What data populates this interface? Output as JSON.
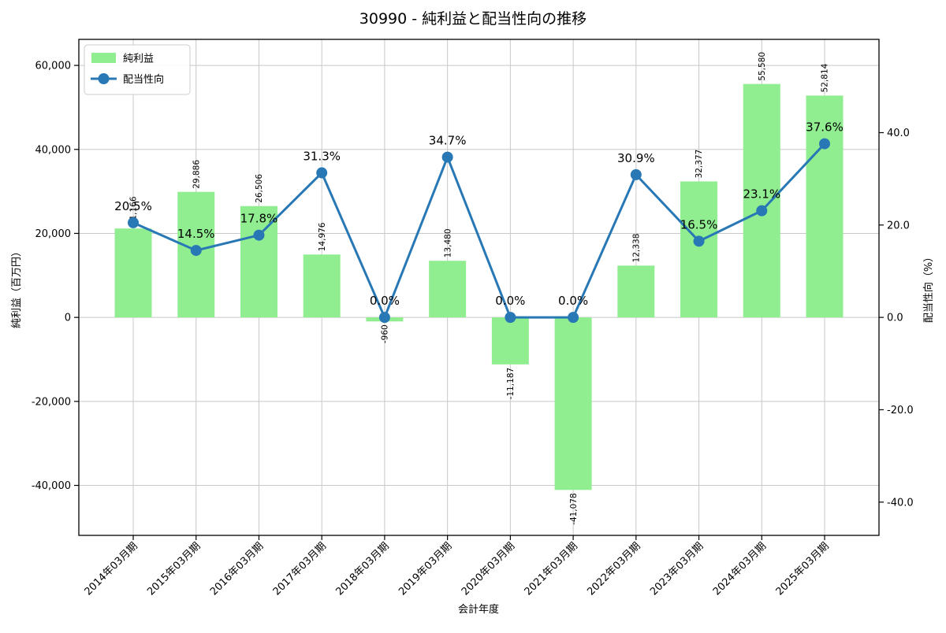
{
  "title": "30990 - 純利益と配当性向の推移",
  "legend": {
    "position": "upper left",
    "bar_label": "純利益",
    "line_label": "配当性向"
  },
  "axes": {
    "x_title": "会計年度",
    "y_left_title": "純利益（百万円）",
    "y_right_title": "配当性向（%）"
  },
  "colors": {
    "bar": "#90ee90",
    "line": "#2878b5",
    "pct_label": "#2e86c1",
    "grid": "#c8c8c8",
    "spine": "#000000",
    "legend_border": "#cccccc"
  },
  "chart_data": {
    "type": "bar",
    "subtype": "bar+line dual-axis",
    "title": "30990 - 純利益と配当性向の推移",
    "xlabel": "会計年度",
    "ylabel_left": "純利益（百万円）",
    "ylabel_right": "配当性向（%）",
    "grid": true,
    "legend_position": "upper left",
    "categories": [
      "2014年03月期",
      "2015年03月期",
      "2016年03月期",
      "2017年03月期",
      "2018年03月期",
      "2019年03月期",
      "2020年03月期",
      "2021年03月期",
      "2022年03月期",
      "2023年03月期",
      "2024年03月期",
      "2025年03月期"
    ],
    "series": [
      {
        "name": "純利益",
        "type": "bar",
        "axis": "left",
        "color": "#90ee90",
        "values": [
          21166,
          29886,
          26506,
          14976,
          -960,
          13480,
          -11187,
          -41078,
          12338,
          32377,
          55580,
          52814
        ],
        "labels": [
          "21,166",
          "29,886",
          "26,506",
          "14,976",
          "-960",
          "13,480",
          "-11,187",
          "-41,078",
          "12,338",
          "32,377",
          "55,580",
          "52,814"
        ]
      },
      {
        "name": "配当性向",
        "type": "line",
        "axis": "right",
        "color": "#2878b5",
        "values": [
          20.5,
          14.5,
          17.8,
          31.3,
          0.0,
          34.7,
          0.0,
          0.0,
          30.9,
          16.5,
          23.1,
          37.6
        ],
        "labels": [
          "20.5%",
          "14.5%",
          "17.8%",
          "31.3%",
          "0.0%",
          "34.7%",
          "0.0%",
          "0.0%",
          "30.9%",
          "16.5%",
          "23.1%",
          "37.6%"
        ]
      }
    ],
    "y_left": {
      "lim": [
        -51900,
        66200
      ],
      "ticks": [
        60000,
        40000,
        20000,
        0,
        -20000,
        -40000
      ],
      "tick_labels": [
        "60,000",
        "40,000",
        "20,000",
        "0",
        "-20,000",
        "-40,000"
      ]
    },
    "y_right": {
      "lim": [
        -47.2,
        60.2
      ],
      "ticks": [
        40,
        20,
        0,
        -20,
        -40
      ],
      "tick_labels": [
        "40.0",
        "20.0",
        "0.0",
        "-20.0",
        "-40.0"
      ]
    }
  }
}
